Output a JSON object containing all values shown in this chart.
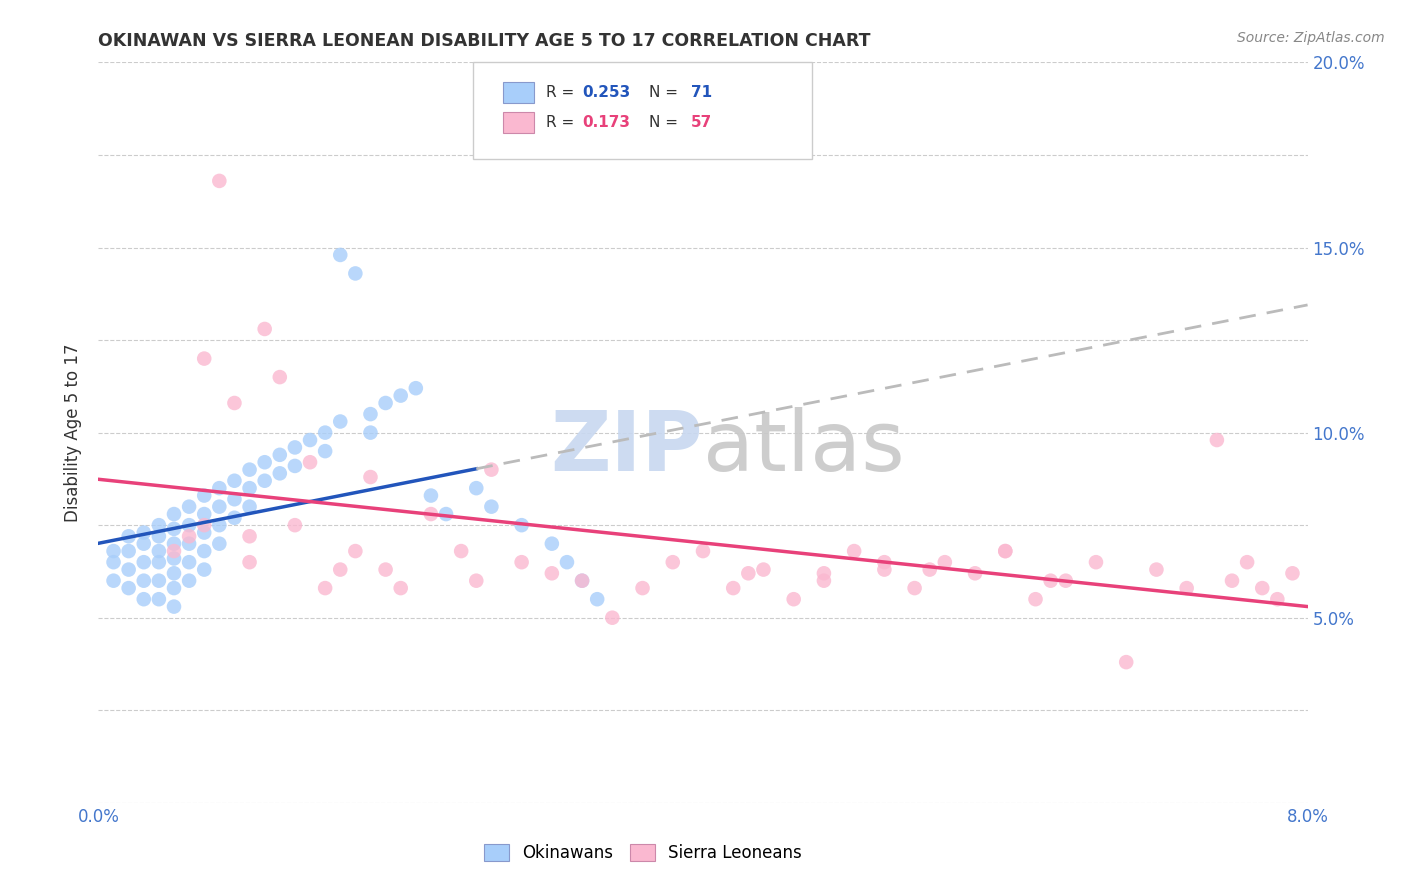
{
  "title": "OKINAWAN VS SIERRA LEONEAN DISABILITY AGE 5 TO 17 CORRELATION CHART",
  "source": "Source: ZipAtlas.com",
  "ylabel": "Disability Age 5 to 17",
  "xlim": [
    0.0,
    0.08
  ],
  "ylim": [
    0.0,
    0.2
  ],
  "yticks_right": [
    0.05,
    0.1,
    0.15,
    0.2
  ],
  "ytick_right_labels": [
    "5.0%",
    "10.0%",
    "15.0%",
    "20.0%"
  ],
  "legend_r1": "0.253",
  "legend_n1": "71",
  "legend_r2": "0.173",
  "legend_n2": "57",
  "okinawan_color": "#A8CEFA",
  "sierra_leonean_color": "#FAB8D0",
  "okinawan_line_color": "#2255BB",
  "sierra_leonean_line_color": "#E8417A",
  "dashed_line_color": "#BBBBBB",
  "watermark_zip_color": "#C8D8F0",
  "watermark_atlas_color": "#C8C8C8",
  "background_color": "#FFFFFF",
  "grid_color": "#CCCCCC",
  "title_color": "#333333",
  "source_color": "#888888",
  "axis_label_color": "#333333",
  "tick_label_color": "#4477CC",
  "ok_line_end_x": 0.025,
  "ok_x": [
    0.001,
    0.001,
    0.001,
    0.002,
    0.002,
    0.002,
    0.002,
    0.003,
    0.003,
    0.003,
    0.003,
    0.003,
    0.004,
    0.004,
    0.004,
    0.004,
    0.004,
    0.004,
    0.005,
    0.005,
    0.005,
    0.005,
    0.005,
    0.005,
    0.005,
    0.006,
    0.006,
    0.006,
    0.006,
    0.006,
    0.007,
    0.007,
    0.007,
    0.007,
    0.007,
    0.008,
    0.008,
    0.008,
    0.008,
    0.009,
    0.009,
    0.009,
    0.01,
    0.01,
    0.01,
    0.011,
    0.011,
    0.012,
    0.012,
    0.013,
    0.013,
    0.014,
    0.015,
    0.015,
    0.016,
    0.016,
    0.017,
    0.018,
    0.018,
    0.019,
    0.02,
    0.021,
    0.022,
    0.023,
    0.025,
    0.026,
    0.028,
    0.03,
    0.031,
    0.032,
    0.033
  ],
  "ok_y": [
    0.068,
    0.065,
    0.06,
    0.072,
    0.068,
    0.063,
    0.058,
    0.073,
    0.07,
    0.065,
    0.06,
    0.055,
    0.075,
    0.072,
    0.068,
    0.065,
    0.06,
    0.055,
    0.078,
    0.074,
    0.07,
    0.066,
    0.062,
    0.058,
    0.053,
    0.08,
    0.075,
    0.07,
    0.065,
    0.06,
    0.083,
    0.078,
    0.073,
    0.068,
    0.063,
    0.085,
    0.08,
    0.075,
    0.07,
    0.087,
    0.082,
    0.077,
    0.09,
    0.085,
    0.08,
    0.092,
    0.087,
    0.094,
    0.089,
    0.096,
    0.091,
    0.098,
    0.1,
    0.095,
    0.148,
    0.103,
    0.143,
    0.105,
    0.1,
    0.108,
    0.11,
    0.112,
    0.083,
    0.078,
    0.085,
    0.08,
    0.075,
    0.07,
    0.065,
    0.06,
    0.055
  ],
  "sl_x": [
    0.005,
    0.006,
    0.007,
    0.007,
    0.008,
    0.009,
    0.01,
    0.01,
    0.011,
    0.012,
    0.013,
    0.014,
    0.015,
    0.016,
    0.017,
    0.018,
    0.019,
    0.02,
    0.022,
    0.024,
    0.025,
    0.026,
    0.028,
    0.03,
    0.032,
    0.034,
    0.036,
    0.038,
    0.04,
    0.042,
    0.044,
    0.046,
    0.048,
    0.05,
    0.052,
    0.054,
    0.056,
    0.058,
    0.06,
    0.062,
    0.064,
    0.066,
    0.043,
    0.048,
    0.052,
    0.055,
    0.06,
    0.063,
    0.068,
    0.07,
    0.072,
    0.074,
    0.075,
    0.076,
    0.077,
    0.078,
    0.079
  ],
  "sl_y": [
    0.068,
    0.072,
    0.12,
    0.075,
    0.168,
    0.108,
    0.072,
    0.065,
    0.128,
    0.115,
    0.075,
    0.092,
    0.058,
    0.063,
    0.068,
    0.088,
    0.063,
    0.058,
    0.078,
    0.068,
    0.06,
    0.09,
    0.065,
    0.062,
    0.06,
    0.05,
    0.058,
    0.065,
    0.068,
    0.058,
    0.063,
    0.055,
    0.062,
    0.068,
    0.063,
    0.058,
    0.065,
    0.062,
    0.068,
    0.055,
    0.06,
    0.065,
    0.062,
    0.06,
    0.065,
    0.063,
    0.068,
    0.06,
    0.038,
    0.063,
    0.058,
    0.098,
    0.06,
    0.065,
    0.058,
    0.055,
    0.062
  ]
}
